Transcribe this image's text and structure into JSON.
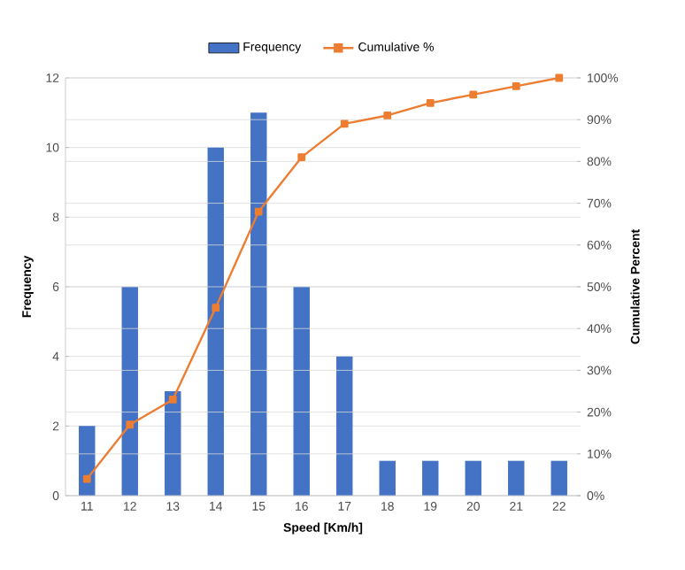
{
  "chart_data": {
    "type": "bar",
    "xlabel": "Speed [Km/h]",
    "ylabel": "Frequency",
    "y2label": "Cumulative Percent",
    "categories": [
      "11",
      "12",
      "13",
      "14",
      "15",
      "16",
      "17",
      "18",
      "19",
      "20",
      "21",
      "22"
    ],
    "series": [
      {
        "name": "Frequency",
        "color": "#4472c4",
        "values": [
          2,
          6,
          3,
          10,
          11,
          6,
          4,
          1,
          1,
          1,
          1,
          1
        ]
      },
      {
        "name": "Cumulative %",
        "type": "line",
        "axis": "y2",
        "marker": "square",
        "color": "#ed7d31",
        "values": [
          4,
          17,
          23,
          45,
          68,
          81,
          89,
          91,
          94,
          96,
          98,
          100
        ]
      }
    ],
    "ylim": [
      0,
      12
    ],
    "yticks": [
      0,
      2,
      4,
      6,
      8,
      10,
      12
    ],
    "y2lim": [
      0,
      100
    ],
    "y2ticks": [
      {
        "value": 0,
        "label": "0%"
      },
      {
        "value": 10,
        "label": "10%"
      },
      {
        "value": 20,
        "label": "20%"
      },
      {
        "value": 30,
        "label": "30%"
      },
      {
        "value": 40,
        "label": "40%"
      },
      {
        "value": 50,
        "label": "50%"
      },
      {
        "value": 60,
        "label": "60%"
      },
      {
        "value": 70,
        "label": "70%"
      },
      {
        "value": 80,
        "label": "80%"
      },
      {
        "value": 90,
        "label": "90%"
      },
      {
        "value": 100,
        "label": "100%"
      }
    ],
    "grid": true,
    "legend": "top"
  }
}
